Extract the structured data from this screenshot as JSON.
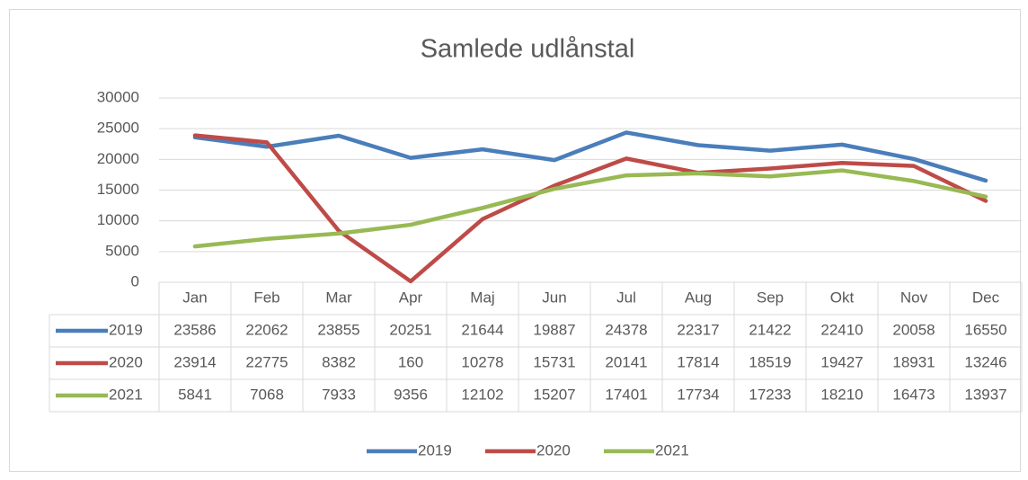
{
  "chart_data": {
    "type": "line",
    "title": "Samlede udlånstal",
    "categories": [
      "Jan",
      "Feb",
      "Mar",
      "Apr",
      "Maj",
      "Jun",
      "Jul",
      "Aug",
      "Sep",
      "Okt",
      "Nov",
      "Dec"
    ],
    "series": [
      {
        "name": "2019",
        "color": "#4a7ebb",
        "values": [
          23586,
          22062,
          23855,
          20251,
          21644,
          19887,
          24378,
          22317,
          21422,
          22410,
          20058,
          16550
        ]
      },
      {
        "name": "2020",
        "color": "#be4b48",
        "values": [
          23914,
          22775,
          8382,
          160,
          10278,
          15731,
          20141,
          17814,
          18519,
          19427,
          18931,
          13246
        ]
      },
      {
        "name": "2021",
        "color": "#98b954",
        "values": [
          5841,
          7068,
          7933,
          9356,
          12102,
          15207,
          17401,
          17734,
          17233,
          18210,
          16473,
          13937
        ]
      }
    ],
    "ylim": [
      0,
      30000
    ],
    "yticks": [
      0,
      5000,
      10000,
      15000,
      20000,
      25000,
      30000
    ],
    "grid": true,
    "legend": "bottom",
    "data_table": true
  }
}
